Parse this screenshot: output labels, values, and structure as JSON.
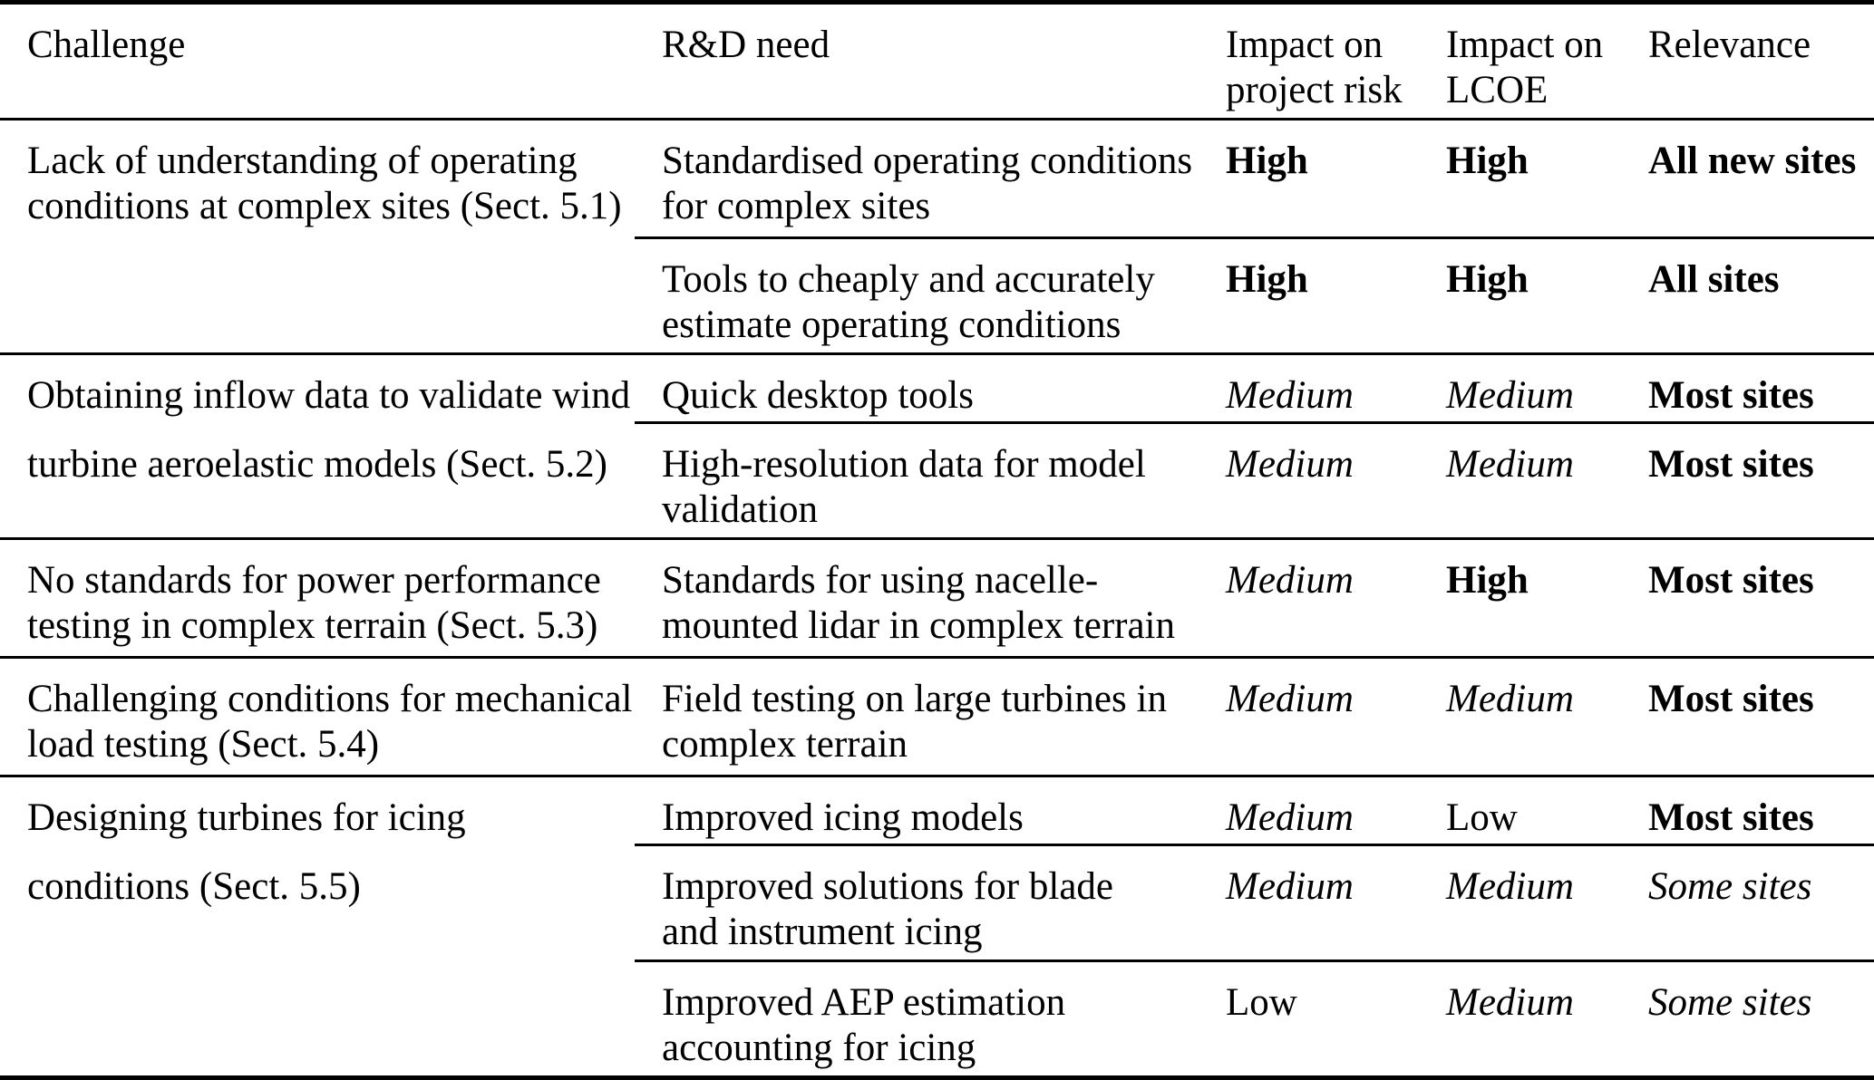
{
  "table": {
    "headers": {
      "challenge": "Challenge",
      "need": "R&D need",
      "risk": [
        "Impact on",
        "project risk"
      ],
      "lcoe": [
        "Impact on",
        "LCOE"
      ],
      "relevance": "Relevance"
    },
    "groups": [
      {
        "challenge_lines": [
          "Lack of understanding of operating",
          "conditions at complex sites (Sect. 5.1)"
        ],
        "rows": [
          {
            "need_lines": [
              "Standardised operating conditions",
              "for complex sites"
            ],
            "risk": {
              "text": "High",
              "emph": "bold"
            },
            "lcoe": {
              "text": "High",
              "emph": "bold"
            },
            "relevance": {
              "text": "All new sites",
              "emph": "bold"
            }
          },
          {
            "need_lines": [
              "Tools to cheaply and accurately",
              "estimate operating conditions"
            ],
            "risk": {
              "text": "High",
              "emph": "bold"
            },
            "lcoe": {
              "text": "High",
              "emph": "bold"
            },
            "relevance": {
              "text": "All sites",
              "emph": "bold"
            }
          }
        ]
      },
      {
        "challenge_lines": [
          "Obtaining inflow data to validate wind",
          "turbine aeroelastic models (Sect. 5.2)"
        ],
        "rows": [
          {
            "need_lines": [
              "Quick desktop tools"
            ],
            "risk": {
              "text": "Medium",
              "emph": "italic"
            },
            "lcoe": {
              "text": "Medium",
              "emph": "italic"
            },
            "relevance": {
              "text": "Most sites",
              "emph": "bold"
            }
          },
          {
            "need_lines": [
              "High-resolution data for model",
              "validation"
            ],
            "risk": {
              "text": "Medium",
              "emph": "italic"
            },
            "lcoe": {
              "text": "Medium",
              "emph": "italic"
            },
            "relevance": {
              "text": "Most sites",
              "emph": "bold"
            }
          }
        ]
      },
      {
        "challenge_lines": [
          "No standards for power performance",
          "testing in complex terrain (Sect. 5.3)"
        ],
        "rows": [
          {
            "need_lines": [
              "Standards for using nacelle-",
              "mounted lidar in complex terrain"
            ],
            "risk": {
              "text": "Medium",
              "emph": "italic"
            },
            "lcoe": {
              "text": "High",
              "emph": "bold"
            },
            "relevance": {
              "text": "Most sites",
              "emph": "bold"
            }
          }
        ]
      },
      {
        "challenge_lines": [
          "Challenging conditions for mechanical",
          "load testing (Sect. 5.4)"
        ],
        "rows": [
          {
            "need_lines": [
              "Field testing on large turbines in",
              "complex terrain"
            ],
            "risk": {
              "text": "Medium",
              "emph": "italic"
            },
            "lcoe": {
              "text": "Medium",
              "emph": "italic"
            },
            "relevance": {
              "text": "Most sites",
              "emph": "bold"
            }
          }
        ]
      },
      {
        "challenge_lines": [
          "Designing turbines for icing",
          "conditions (Sect. 5.5)"
        ],
        "rows": [
          {
            "need_lines": [
              "Improved icing models"
            ],
            "risk": {
              "text": "Medium",
              "emph": "italic"
            },
            "lcoe": {
              "text": "Low",
              "emph": "regular"
            },
            "relevance": {
              "text": "Most sites",
              "emph": "bold"
            }
          },
          {
            "need_lines": [
              "Improved solutions for blade",
              "and instrument icing"
            ],
            "risk": {
              "text": "Medium",
              "emph": "italic"
            },
            "lcoe": {
              "text": "Medium",
              "emph": "italic"
            },
            "relevance": {
              "text": "Some sites",
              "emph": "italic"
            }
          },
          {
            "need_lines": [
              "Improved AEP estimation",
              "accounting for icing"
            ],
            "risk": {
              "text": "Low",
              "emph": "regular"
            },
            "lcoe": {
              "text": "Medium",
              "emph": "italic"
            },
            "relevance": {
              "text": "Some sites",
              "emph": "italic"
            }
          }
        ]
      }
    ]
  }
}
